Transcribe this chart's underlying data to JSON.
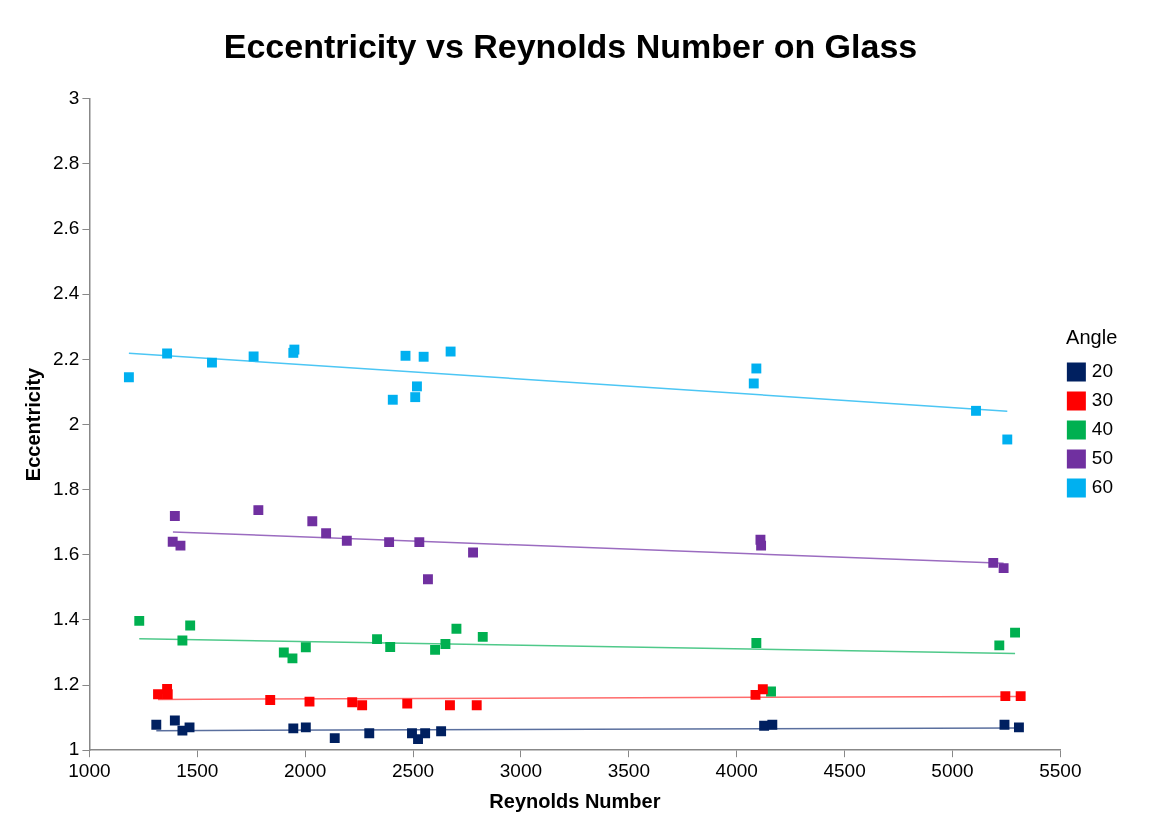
{
  "chart_data": {
    "type": "scatter",
    "title": "Eccentricity vs Reynolds Number on Glass",
    "xlabel": "Reynolds Number",
    "ylabel": "Eccentricity",
    "legend_title": "Angle",
    "legend": "right",
    "marker": "square",
    "xlim": [
      1000,
      5500
    ],
    "xticks": [
      1000,
      1500,
      2000,
      2500,
      3000,
      3500,
      4000,
      4500,
      5000,
      5500
    ],
    "ylim": [
      1,
      3
    ],
    "yticks": [
      1,
      1.2,
      1.4,
      1.6,
      1.8,
      2,
      2.2,
      2.4,
      2.6,
      2.8,
      3
    ],
    "series": [
      {
        "name": "20",
        "color": "#002060",
        "x": [
          1310,
          1396,
          1431,
          1464,
          1945,
          2003,
          2137,
          2297,
          2495,
          2523,
          2556,
          2630,
          4127,
          4165,
          5241,
          5308
        ],
        "values": [
          1.078,
          1.091,
          1.06,
          1.07,
          1.067,
          1.07,
          1.037,
          1.052,
          1.052,
          1.034,
          1.052,
          1.058,
          1.075,
          1.078,
          1.078,
          1.07
        ]
      },
      {
        "name": "30",
        "color": "#ff0000",
        "x": [
          1318,
          1360,
          1363,
          1838,
          2020,
          2218,
          2264,
          2473,
          2671,
          2795,
          4087,
          4121,
          5245,
          5316
        ],
        "values": [
          1.172,
          1.188,
          1.172,
          1.154,
          1.149,
          1.147,
          1.138,
          1.143,
          1.138,
          1.138,
          1.17,
          1.187,
          1.166,
          1.166
        ]
      },
      {
        "name": "40",
        "color": "#00b050",
        "x": [
          1231,
          1431,
          1467,
          1901,
          1941,
          2003,
          2333,
          2394,
          2602,
          2650,
          2701,
          2823,
          4091,
          4159,
          5217,
          5290
        ],
        "values": [
          1.397,
          1.337,
          1.383,
          1.3,
          1.282,
          1.316,
          1.341,
          1.317,
          1.308,
          1.326,
          1.373,
          1.348,
          1.329,
          1.18,
          1.322,
          1.361
        ]
      },
      {
        "name": "50",
        "color": "#7030a0",
        "x": [
          1396,
          1386,
          1422,
          1783,
          2033,
          2097,
          2193,
          2389,
          2529,
          2569,
          2778,
          4110,
          4113,
          5189,
          5237
        ],
        "values": [
          1.719,
          1.64,
          1.628,
          1.737,
          1.703,
          1.666,
          1.643,
          1.639,
          1.639,
          1.525,
          1.607,
          1.646,
          1.628,
          1.575,
          1.559
        ]
      },
      {
        "name": "60",
        "color": "#00b0f0",
        "x": [
          1183,
          1360,
          1568,
          1761,
          1950,
          1945,
          2465,
          2549,
          2674,
          2406,
          2510,
          2518,
          4091,
          4079,
          5109,
          5254
        ],
        "values": [
          2.145,
          2.218,
          2.19,
          2.209,
          2.23,
          2.22,
          2.211,
          2.208,
          2.224,
          2.076,
          2.084,
          2.117,
          2.172,
          2.126,
          2.042,
          1.954
        ]
      },
      {
        "type": "line",
        "marker": "none",
        "color": "#5a6f9e",
        "x": [
          1310,
          5308
        ],
        "values": [
          1.06,
          1.068
        ]
      },
      {
        "type": "line",
        "marker": "none",
        "color": "#ff6b6b",
        "x": [
          1318,
          5316
        ],
        "values": [
          1.156,
          1.165
        ]
      },
      {
        "type": "line",
        "marker": "none",
        "color": "#4fc98a",
        "x": [
          1231,
          5290
        ],
        "values": [
          1.342,
          1.297
        ]
      },
      {
        "type": "line",
        "marker": "none",
        "color": "#9b6cc0",
        "x": [
          1387,
          5237
        ],
        "values": [
          1.67,
          1.574
        ]
      },
      {
        "type": "line",
        "marker": "none",
        "color": "#4cc6f4",
        "x": [
          1183,
          5254
        ],
        "values": [
          2.219,
          2.041
        ]
      }
    ]
  }
}
